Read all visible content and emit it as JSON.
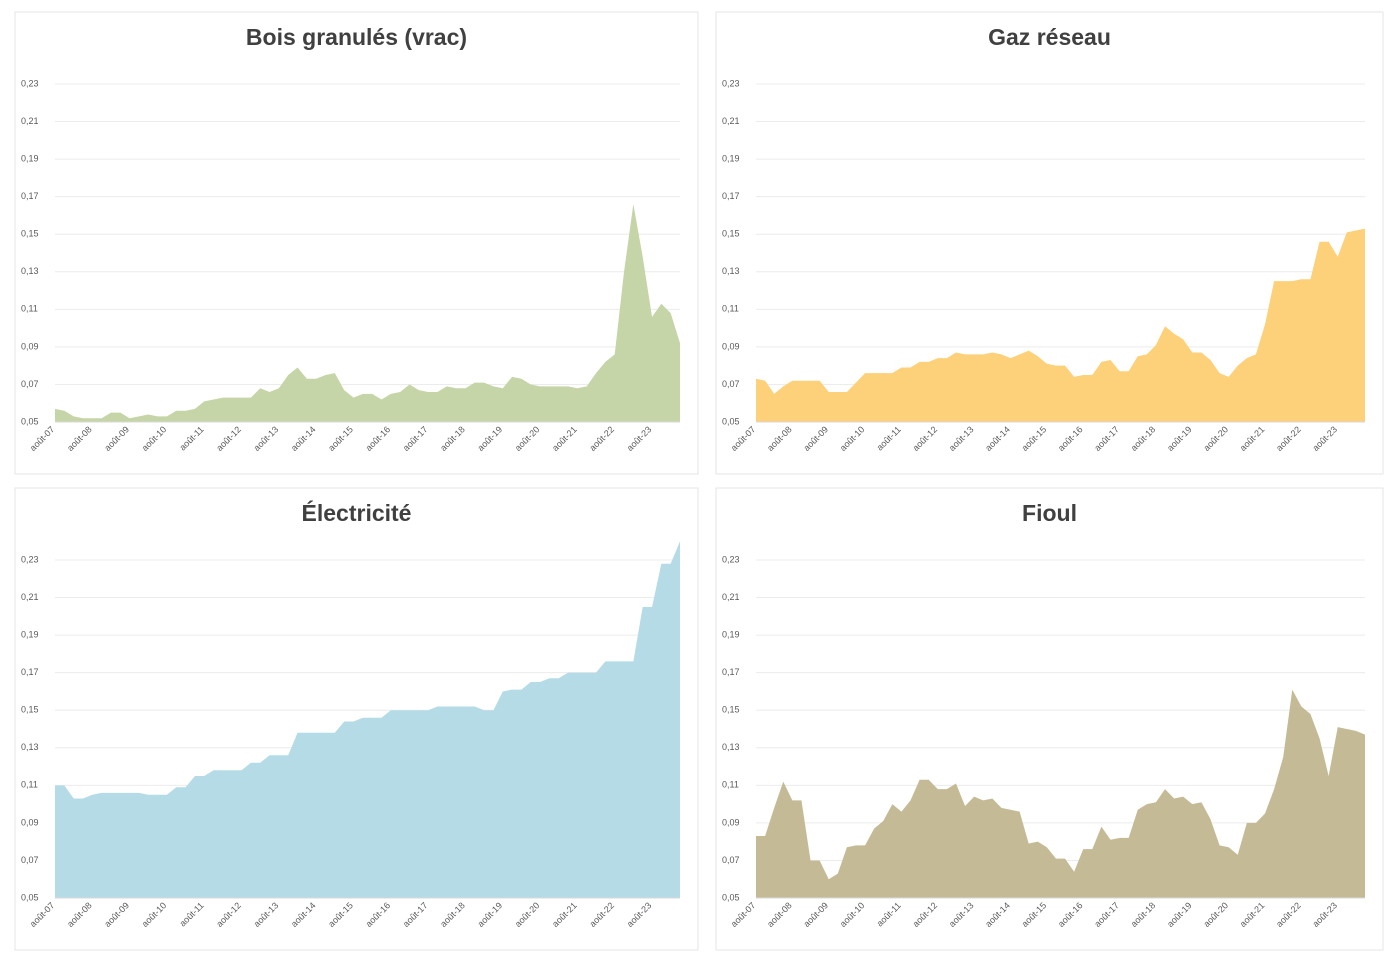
{
  "chart_data": [
    {
      "type": "area",
      "title": "Bois granulés (vrac)",
      "color": "#c5d5a7",
      "categories": [
        "août-07",
        null,
        null,
        null,
        "août-08",
        null,
        null,
        null,
        "août-09",
        null,
        null,
        null,
        "août-10",
        null,
        null,
        null,
        "août-11",
        null,
        null,
        null,
        "août-12",
        null,
        null,
        null,
        "août-13",
        null,
        null,
        null,
        "août-14",
        null,
        null,
        null,
        "août-15",
        null,
        null,
        null,
        "août-16",
        null,
        null,
        null,
        "août-17",
        null,
        null,
        null,
        "août-18",
        null,
        null,
        null,
        "août-19",
        null,
        null,
        null,
        "août-20",
        null,
        null,
        null,
        "août-21",
        null,
        null,
        null,
        "août-22",
        null,
        null,
        null,
        "août-23",
        null,
        null,
        null
      ],
      "values": [
        0.057,
        0.056,
        0.053,
        0.052,
        0.052,
        0.052,
        0.055,
        0.055,
        0.052,
        0.053,
        0.054,
        0.053,
        0.053,
        0.056,
        0.056,
        0.057,
        0.061,
        0.062,
        0.063,
        0.063,
        0.063,
        0.063,
        0.068,
        0.066,
        0.068,
        0.075,
        0.079,
        0.073,
        0.073,
        0.075,
        0.076,
        0.067,
        0.063,
        0.065,
        0.065,
        0.062,
        0.065,
        0.066,
        0.07,
        0.067,
        0.066,
        0.066,
        0.069,
        0.068,
        0.068,
        0.071,
        0.071,
        0.069,
        0.068,
        0.074,
        0.073,
        0.07,
        0.069,
        0.069,
        0.069,
        0.069,
        0.068,
        0.069,
        0.076,
        0.082,
        0.086,
        0.13,
        0.166,
        0.138,
        0.106,
        0.113,
        0.108,
        0.092
      ],
      "ylim": [
        0.05,
        0.24
      ],
      "yticks": [
        {
          "value": 0.05,
          "label": "0,05"
        },
        {
          "value": 0.07,
          "label": "0,07"
        },
        {
          "value": 0.09,
          "label": "0,09"
        },
        {
          "value": 0.11,
          "label": "0,11"
        },
        {
          "value": 0.13,
          "label": "0,13"
        },
        {
          "value": 0.15,
          "label": "0,15"
        },
        {
          "value": 0.17,
          "label": "0,17"
        },
        {
          "value": 0.19,
          "label": "0,19"
        },
        {
          "value": 0.21,
          "label": "0,21"
        },
        {
          "value": 0.23,
          "label": "0,23"
        }
      ],
      "grid": true
    },
    {
      "type": "area",
      "title": "Gaz réseau",
      "color": "#fdd07a",
      "categories": [
        "août-07",
        null,
        null,
        null,
        "août-08",
        null,
        null,
        null,
        "août-09",
        null,
        null,
        null,
        "août-10",
        null,
        null,
        null,
        "août-11",
        null,
        null,
        null,
        "août-12",
        null,
        null,
        null,
        "août-13",
        null,
        null,
        null,
        "août-14",
        null,
        null,
        null,
        "août-15",
        null,
        null,
        null,
        "août-16",
        null,
        null,
        null,
        "août-17",
        null,
        null,
        null,
        "août-18",
        null,
        null,
        null,
        "août-19",
        null,
        null,
        null,
        "août-20",
        null,
        null,
        null,
        "août-21",
        null,
        null,
        null,
        "août-22",
        null,
        null,
        null,
        "août-23",
        null,
        null,
        null
      ],
      "values": [
        0.073,
        0.072,
        0.065,
        0.069,
        0.072,
        0.072,
        0.072,
        0.072,
        0.066,
        0.066,
        0.066,
        0.071,
        0.076,
        0.076,
        0.076,
        0.076,
        0.079,
        0.079,
        0.082,
        0.082,
        0.084,
        0.084,
        0.087,
        0.086,
        0.086,
        0.086,
        0.087,
        0.086,
        0.084,
        0.086,
        0.088,
        0.085,
        0.081,
        0.08,
        0.08,
        0.074,
        0.075,
        0.075,
        0.082,
        0.083,
        0.077,
        0.077,
        0.085,
        0.086,
        0.091,
        0.101,
        0.097,
        0.094,
        0.087,
        0.087,
        0.083,
        0.076,
        0.074,
        0.08,
        0.084,
        0.086,
        0.102,
        0.125,
        0.125,
        0.125,
        0.126,
        0.126,
        0.146,
        0.146,
        0.138,
        0.151,
        0.152,
        0.153
      ],
      "ylim": [
        0.05,
        0.24
      ],
      "yticks": [
        {
          "value": 0.05,
          "label": "0,05"
        },
        {
          "value": 0.07,
          "label": "0,07"
        },
        {
          "value": 0.09,
          "label": "0,09"
        },
        {
          "value": 0.11,
          "label": "0,11"
        },
        {
          "value": 0.13,
          "label": "0,13"
        },
        {
          "value": 0.15,
          "label": "0,15"
        },
        {
          "value": 0.17,
          "label": "0,17"
        },
        {
          "value": 0.19,
          "label": "0,19"
        },
        {
          "value": 0.21,
          "label": "0,21"
        },
        {
          "value": 0.23,
          "label": "0,23"
        }
      ],
      "grid": true
    },
    {
      "type": "area",
      "title": "Électricité",
      "color": "#b5dbe7",
      "categories": [
        "août-07",
        null,
        null,
        null,
        "août-08",
        null,
        null,
        null,
        "août-09",
        null,
        null,
        null,
        "août-10",
        null,
        null,
        null,
        "août-11",
        null,
        null,
        null,
        "août-12",
        null,
        null,
        null,
        "août-13",
        null,
        null,
        null,
        "août-14",
        null,
        null,
        null,
        "août-15",
        null,
        null,
        null,
        "août-16",
        null,
        null,
        null,
        "août-17",
        null,
        null,
        null,
        "août-18",
        null,
        null,
        null,
        "août-19",
        null,
        null,
        null,
        "août-20",
        null,
        null,
        null,
        "août-21",
        null,
        null,
        null,
        "août-22",
        null,
        null,
        null,
        "août-23",
        null,
        null,
        null
      ],
      "values": [
        0.11,
        0.11,
        0.103,
        0.103,
        0.105,
        0.106,
        0.106,
        0.106,
        0.106,
        0.106,
        0.105,
        0.105,
        0.105,
        0.109,
        0.109,
        0.115,
        0.115,
        0.118,
        0.118,
        0.118,
        0.118,
        0.122,
        0.122,
        0.126,
        0.126,
        0.126,
        0.138,
        0.138,
        0.138,
        0.138,
        0.138,
        0.144,
        0.144,
        0.146,
        0.146,
        0.146,
        0.15,
        0.15,
        0.15,
        0.15,
        0.15,
        0.152,
        0.152,
        0.152,
        0.152,
        0.152,
        0.15,
        0.15,
        0.16,
        0.161,
        0.161,
        0.165,
        0.165,
        0.167,
        0.167,
        0.17,
        0.17,
        0.17,
        0.17,
        0.176,
        0.176,
        0.176,
        0.176,
        0.205,
        0.205,
        0.228,
        0.228,
        0.24
      ],
      "ylim": [
        0.05,
        0.24
      ],
      "yticks": [
        {
          "value": 0.05,
          "label": "0,05"
        },
        {
          "value": 0.07,
          "label": "0,07"
        },
        {
          "value": 0.09,
          "label": "0,09"
        },
        {
          "value": 0.11,
          "label": "0,11"
        },
        {
          "value": 0.13,
          "label": "0,13"
        },
        {
          "value": 0.15,
          "label": "0,15"
        },
        {
          "value": 0.17,
          "label": "0,17"
        },
        {
          "value": 0.19,
          "label": "0,19"
        },
        {
          "value": 0.21,
          "label": "0,21"
        },
        {
          "value": 0.23,
          "label": "0,23"
        }
      ],
      "grid": true
    },
    {
      "type": "area",
      "title": "Fioul",
      "color": "#c4bb96",
      "categories": [
        "août-07",
        null,
        null,
        null,
        "août-08",
        null,
        null,
        null,
        "août-09",
        null,
        null,
        null,
        "août-10",
        null,
        null,
        null,
        "août-11",
        null,
        null,
        null,
        "août-12",
        null,
        null,
        null,
        "août-13",
        null,
        null,
        null,
        "août-14",
        null,
        null,
        null,
        "août-15",
        null,
        null,
        null,
        "août-16",
        null,
        null,
        null,
        "août-17",
        null,
        null,
        null,
        "août-18",
        null,
        null,
        null,
        "août-19",
        null,
        null,
        null,
        "août-20",
        null,
        null,
        null,
        "août-21",
        null,
        null,
        null,
        "août-22",
        null,
        null,
        null,
        "août-23",
        null,
        null,
        null
      ],
      "values": [
        0.083,
        0.083,
        0.098,
        0.112,
        0.102,
        0.102,
        0.07,
        0.07,
        0.06,
        0.063,
        0.077,
        0.078,
        0.078,
        0.087,
        0.091,
        0.1,
        0.096,
        0.102,
        0.113,
        0.113,
        0.108,
        0.108,
        0.111,
        0.099,
        0.104,
        0.102,
        0.103,
        0.098,
        0.097,
        0.096,
        0.079,
        0.08,
        0.077,
        0.071,
        0.071,
        0.064,
        0.076,
        0.076,
        0.088,
        0.081,
        0.082,
        0.082,
        0.097,
        0.1,
        0.101,
        0.108,
        0.103,
        0.104,
        0.1,
        0.101,
        0.092,
        0.078,
        0.077,
        0.073,
        0.09,
        0.09,
        0.095,
        0.108,
        0.125,
        0.161,
        0.152,
        0.148,
        0.135,
        0.115,
        0.141,
        0.14,
        0.139,
        0.137
      ],
      "ylim": [
        0.05,
        0.24
      ],
      "yticks": [
        {
          "value": 0.05,
          "label": "0,05"
        },
        {
          "value": 0.07,
          "label": "0,07"
        },
        {
          "value": 0.09,
          "label": "0,09"
        },
        {
          "value": 0.11,
          "label": "0,11"
        },
        {
          "value": 0.13,
          "label": "0,13"
        },
        {
          "value": 0.15,
          "label": "0,15"
        },
        {
          "value": 0.17,
          "label": "0,17"
        },
        {
          "value": 0.19,
          "label": "0,19"
        },
        {
          "value": 0.21,
          "label": "0,21"
        },
        {
          "value": 0.23,
          "label": "0,23"
        }
      ],
      "grid": true
    }
  ]
}
